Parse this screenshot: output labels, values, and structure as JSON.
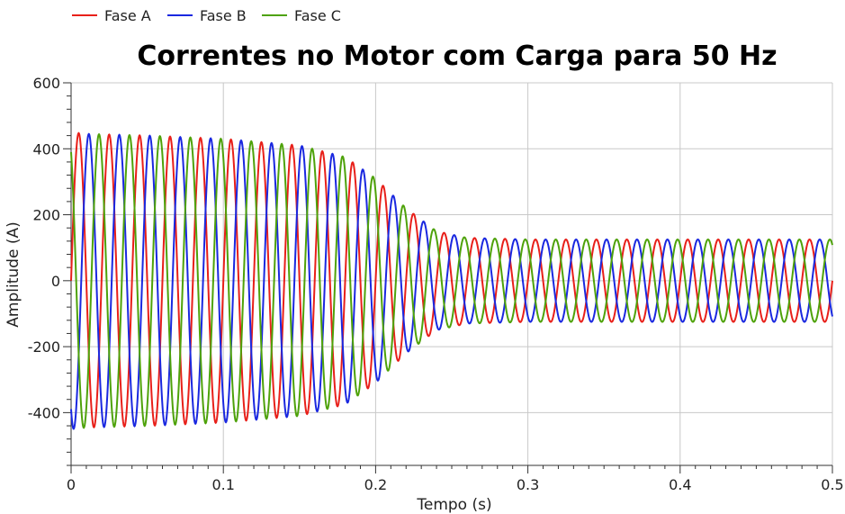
{
  "chart_data": {
    "type": "line",
    "title": "Correntes no Motor com Carga para 50 Hz",
    "xlabel": "Tempo (s)",
    "ylabel": "Amplitude (A)",
    "xlim": [
      0,
      0.5
    ],
    "ylim": [
      -560,
      600
    ],
    "x_ticks": [
      0,
      0.1,
      0.2,
      0.3,
      0.4,
      0.5
    ],
    "x_tick_labels": [
      "0",
      "0.1",
      "0.2",
      "0.3",
      "0.4",
      "0.5"
    ],
    "y_ticks": [
      -400,
      -200,
      0,
      200,
      400,
      600
    ],
    "y_tick_labels": [
      "-400",
      "-200",
      "0",
      "200",
      "400",
      "600"
    ],
    "grid": true,
    "legend_position": "top-left",
    "frequency_hz": 50,
    "series": [
      {
        "name": "Fase A",
        "color": "#e8201a",
        "phase_deg": 0
      },
      {
        "name": "Fase B",
        "color": "#1a28e0",
        "phase_deg": -120
      },
      {
        "name": "Fase C",
        "color": "#4ea20a",
        "phase_deg": 120
      }
    ],
    "amplitude_envelope": {
      "t": [
        0,
        0.01,
        0.05,
        0.1,
        0.15,
        0.18,
        0.2,
        0.22,
        0.24,
        0.26,
        0.3,
        0.5
      ],
      "amplitude": [
        450,
        445,
        440,
        430,
        410,
        375,
        310,
        220,
        150,
        130,
        125,
        125
      ]
    }
  }
}
